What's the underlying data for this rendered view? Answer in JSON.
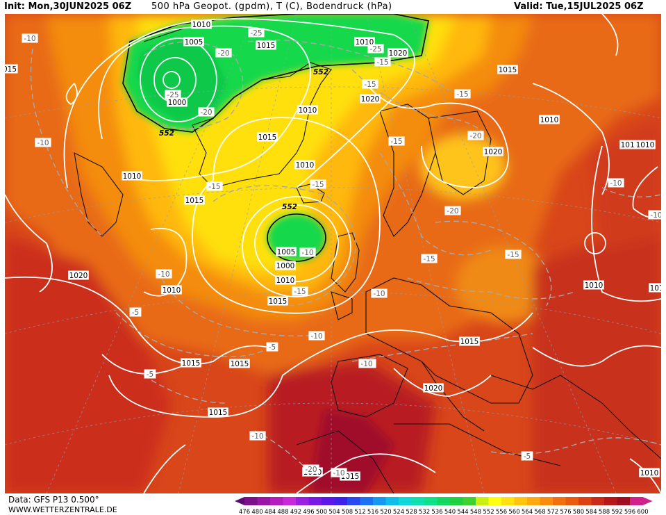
{
  "header": {
    "init": "Init: Mon,30JUN2025 06Z",
    "title": "500 hPa Geopot. (gpdm), T (C), Bodendruck (hPa)",
    "valid": "Valid: Tue,15JUL2025 06Z"
  },
  "footer": {
    "data_source": "Data: GFS P13 0.500°",
    "website": "WWW.WETTERZENTRALE.DE"
  },
  "colorbar": {
    "ticks": [
      "476",
      "480",
      "484",
      "488",
      "492",
      "496",
      "500",
      "504",
      "508",
      "512",
      "516",
      "520",
      "524",
      "528",
      "532",
      "536",
      "540",
      "544",
      "548",
      "552",
      "556",
      "560",
      "564",
      "568",
      "572",
      "576",
      "580",
      "584",
      "588",
      "592",
      "596",
      "600"
    ],
    "colors": [
      "#5a0a70",
      "#7a108a",
      "#9a14a6",
      "#b41cc0",
      "#c828d8",
      "#9a1ee0",
      "#7818e4",
      "#5a18e8",
      "#3c20ec",
      "#2848f0",
      "#1c70f2",
      "#1498f0",
      "#10bce8",
      "#10d8d8",
      "#10e0b0",
      "#10e088",
      "#10d860",
      "#20d040",
      "#40d030",
      "#c8f010",
      "#ffff10",
      "#ffe010",
      "#ffc410",
      "#ffa810",
      "#f88c10",
      "#f07010",
      "#e85a10",
      "#dc4214",
      "#c82c18",
      "#b41818",
      "#a00c20",
      "#d0208c"
    ]
  },
  "map_labels": {
    "isobars": [
      "1010",
      "1005",
      "1000",
      "1015",
      "1010",
      "1015",
      "1010",
      "1020",
      "1015",
      "1020",
      "1010",
      "1015",
      "1010",
      "1020",
      "1015",
      "1010",
      "1010",
      "1005",
      "1000",
      "1010",
      "1015",
      "1020",
      "1010",
      "1015",
      "1015",
      "1015",
      "1020",
      "1015",
      "1015",
      "1010",
      "1010",
      "1010",
      "015",
      "1010"
    ],
    "temps": [
      "-10",
      "-25",
      "-20",
      "-25",
      "-15",
      "-25",
      "-20",
      "-15",
      "-15",
      "-20",
      "-10",
      "-15",
      "-15",
      "-15",
      "-20",
      "-10",
      "-15",
      "-15",
      "-15",
      "-10",
      "-10",
      "-10",
      "-5",
      "-10",
      "-5",
      "-10",
      "-5",
      "-10",
      "-10",
      "-10",
      "-20",
      "-5",
      "-10"
    ],
    "heights": [
      "552",
      "552",
      "552"
    ]
  }
}
